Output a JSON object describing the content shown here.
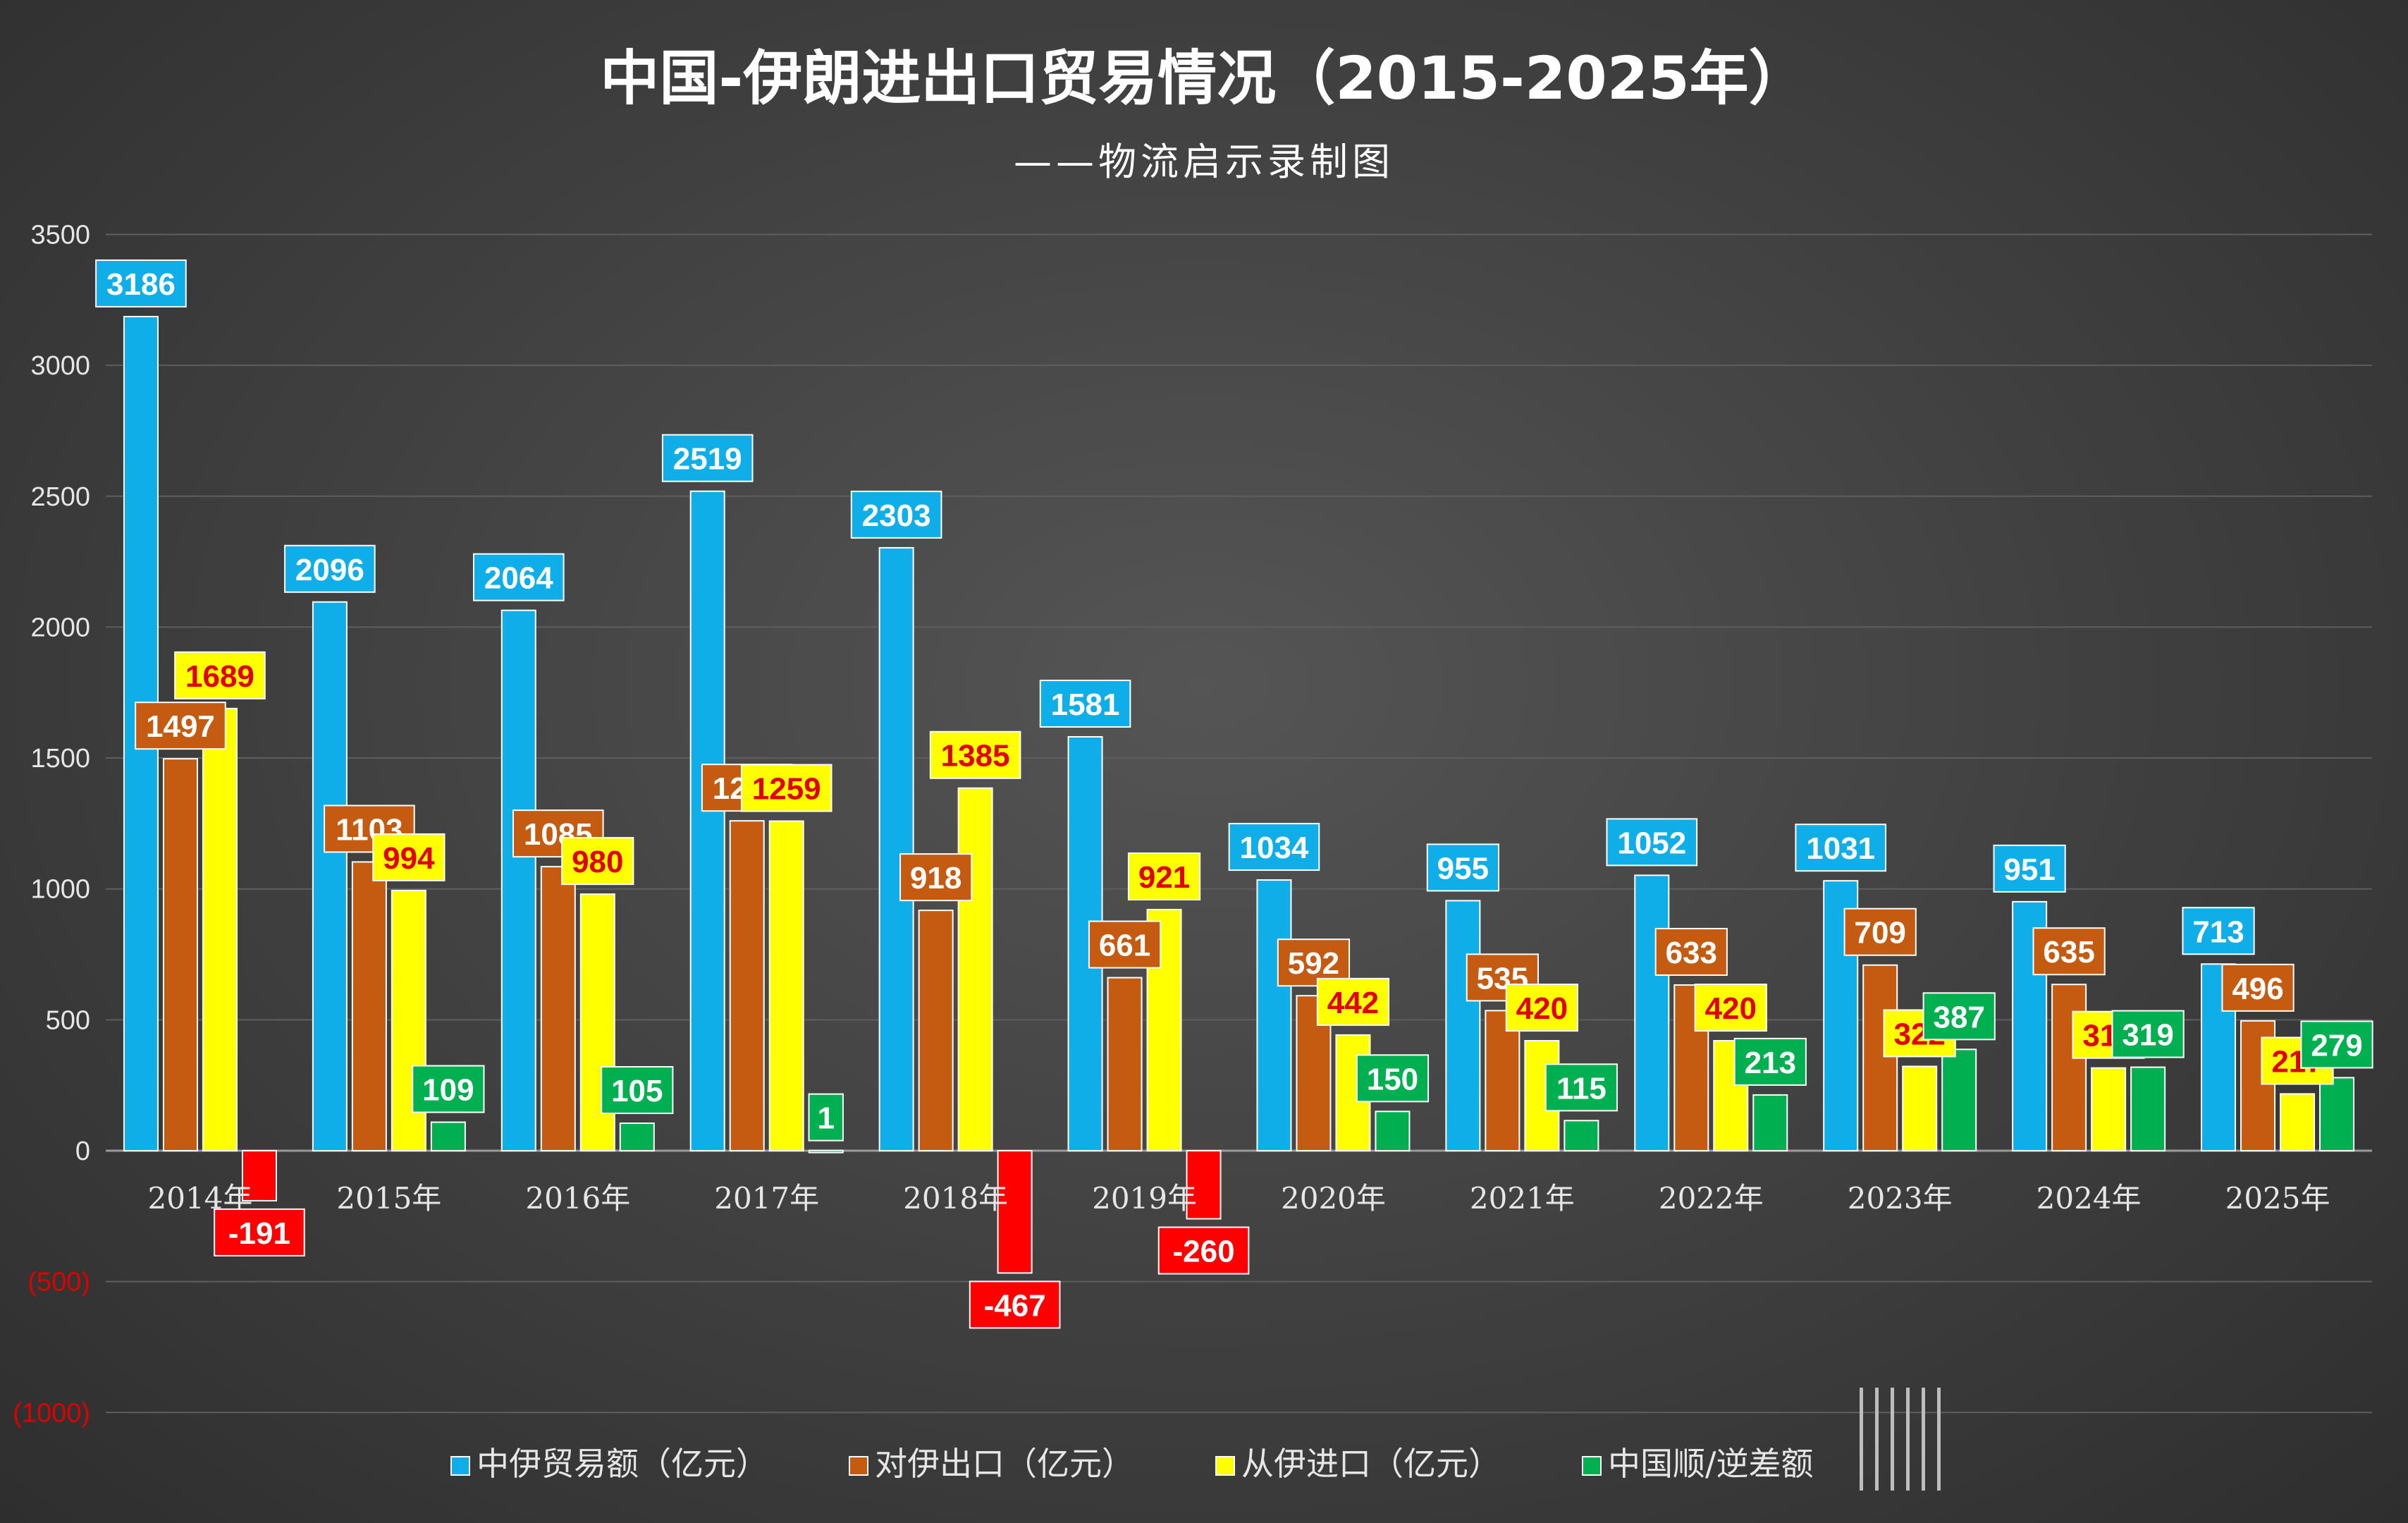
{
  "chart_data": {
    "type": "bar",
    "title": "中国-伊朗进出口贸易情况（2015-2025年）",
    "subtitle": "——物流启示录制图",
    "categories": [
      "2014年",
      "2015年",
      "2016年",
      "2017年",
      "2018年",
      "2019年",
      "2020年",
      "2021年",
      "2022年",
      "2023年",
      "2024年",
      "2025年"
    ],
    "series": [
      {
        "name": "中伊贸易额（亿元）",
        "color": "#10aee8",
        "label_text": "#ffffff",
        "label_bg": "#10aee8",
        "values": [
          3186,
          2096,
          2064,
          2519,
          2303,
          1581,
          1034,
          955,
          1052,
          1031,
          951,
          713
        ]
      },
      {
        "name": "对伊出口（亿元）",
        "color": "#c55a11",
        "label_text": "#ffffff",
        "label_bg": "#c55a11",
        "values": [
          1497,
          1103,
          1085,
          1260,
          918,
          661,
          592,
          535,
          633,
          709,
          635,
          496
        ]
      },
      {
        "name": "从伊进口（亿元）",
        "color": "#ffff00",
        "label_text": "#e00000",
        "label_bg": "#ffff00",
        "values": [
          1689,
          994,
          980,
          1259,
          1385,
          921,
          442,
          420,
          420,
          322,
          316,
          217
        ]
      },
      {
        "name": "中国顺/逆差额",
        "color": "#00b050",
        "label_text": "#ffffff",
        "label_bg": "#00b050",
        "negative_color": "#ff0000",
        "values": [
          -191,
          109,
          105,
          1,
          -467,
          -260,
          150,
          115,
          213,
          387,
          319,
          279
        ]
      }
    ],
    "yticks": [
      "3500",
      "3000",
      "2500",
      "2000",
      "1500",
      "1000",
      "500",
      "0",
      "(500)",
      "(1000)"
    ],
    "ylim": [
      -1000,
      3500
    ],
    "grid": true,
    "legend_position": "bottom"
  }
}
